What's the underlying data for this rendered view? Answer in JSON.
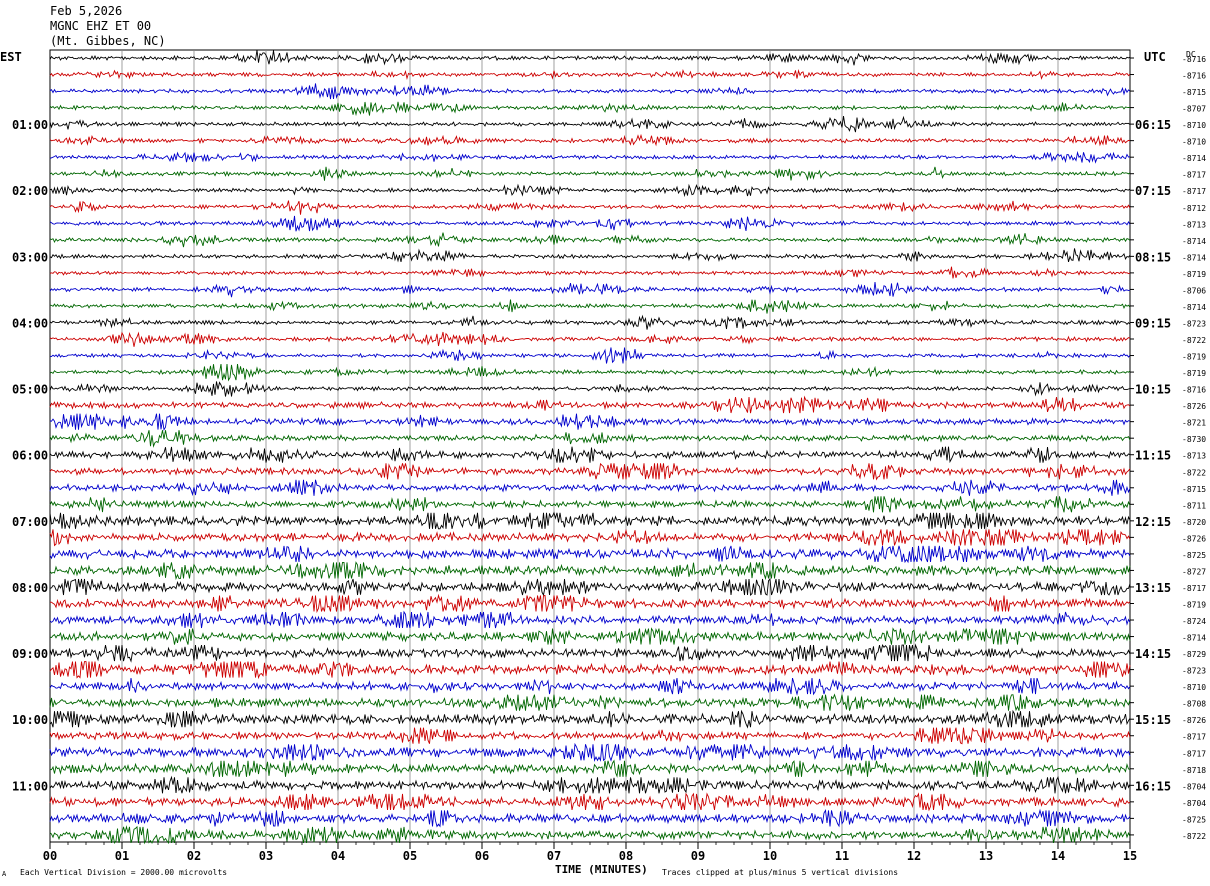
{
  "header": {
    "date": "Feb 5,2026",
    "station": "MGNC EHZ ET 00",
    "location": "(Mt. Gibbes, NC)"
  },
  "left_tz": "EST",
  "right_tz": "UTC",
  "dc_label": "DC",
  "chart_data": {
    "type": "line",
    "title": "",
    "xlabel": "TIME (MINUTES)",
    "ylabel": "",
    "xlim": [
      0,
      15
    ],
    "x_ticks": [
      "00",
      "01",
      "02",
      "03",
      "04",
      "05",
      "06",
      "07",
      "08",
      "09",
      "10",
      "11",
      "12",
      "13",
      "14",
      "15"
    ],
    "left_hour_labels": [
      "01:00",
      "02:00",
      "03:00",
      "04:00",
      "05:00",
      "06:00",
      "07:00",
      "08:00",
      "09:00",
      "10:00",
      "11:00"
    ],
    "right_hour_labels": [
      "06:15",
      "07:15",
      "08:15",
      "09:15",
      "10:15",
      "11:15",
      "12:15",
      "13:15",
      "14:15",
      "15:15",
      "16:15"
    ],
    "trace_colors": [
      "#000000",
      "#cc0000",
      "#0000cc",
      "#006600"
    ],
    "dc_offsets": [
      "-8716",
      "-8716",
      "-8715",
      "-8707",
      "-8710",
      "-8710",
      "-8714",
      "-8717",
      "-8717",
      "-8712",
      "-8713",
      "-8714",
      "-8714",
      "-8719",
      "-8706",
      "-8714",
      "-8723",
      "-8722",
      "-8719",
      "-8719",
      "-8716",
      "-8726",
      "-8721",
      "-8730",
      "-8713",
      "-8722",
      "-8715",
      "-8711",
      "-8720",
      "-8726",
      "-8725",
      "-8727",
      "-8717",
      "-8719",
      "-8724",
      "-8714",
      "-8729",
      "-8723",
      "-8710",
      "-8708",
      "-8726",
      "-8717",
      "-8717",
      "-8718",
      "-8704",
      "-8704",
      "-8725",
      "-8722"
    ],
    "grid": true
  },
  "footer": {
    "scale_note": "Each Vertical Division = 2000.00 microvolts",
    "clip_note": "Traces clipped at plus/minus 5 vertical divisions",
    "corner_mark": "A"
  }
}
